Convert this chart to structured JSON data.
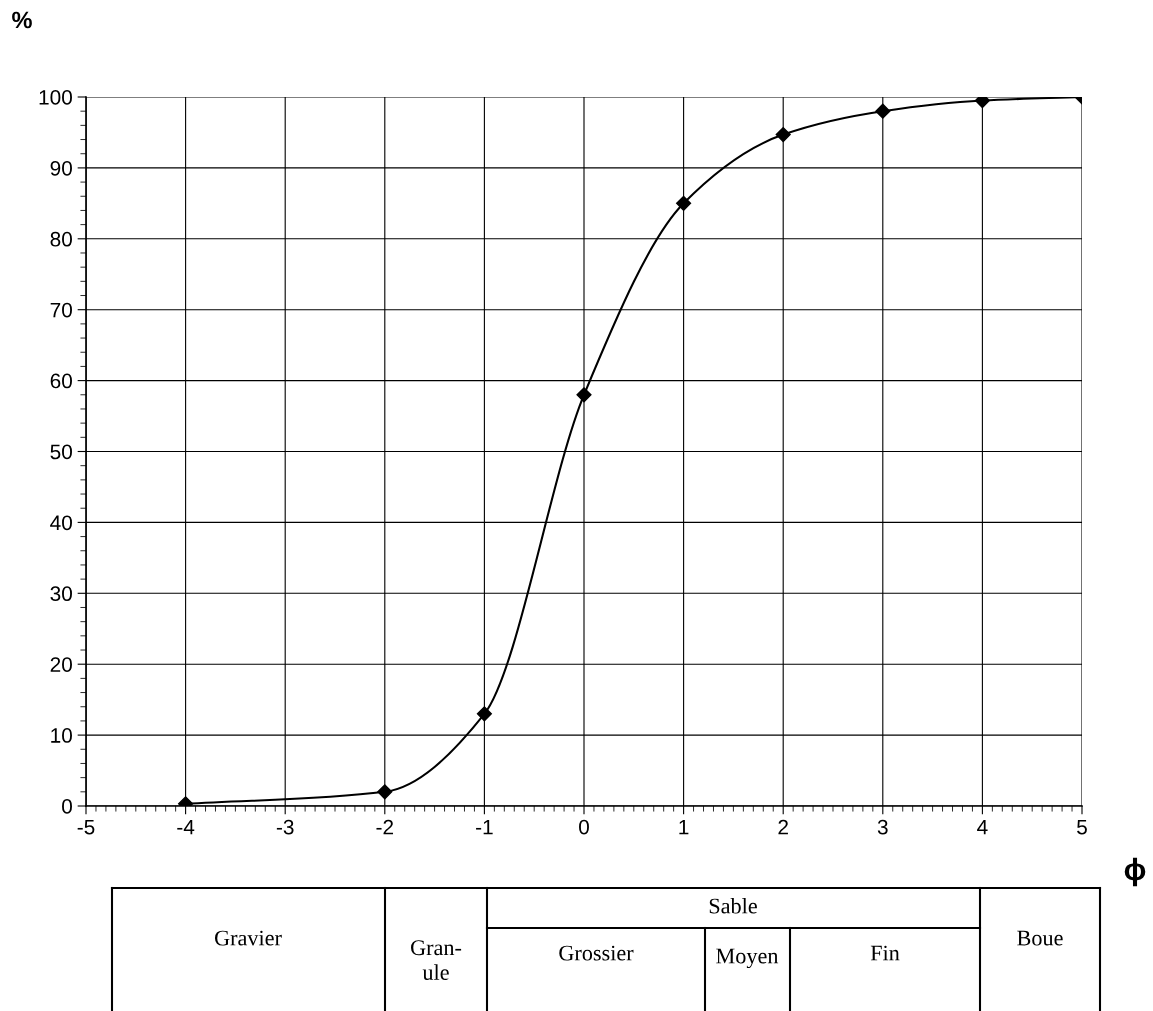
{
  "chart_data": {
    "type": "line",
    "xlabel": "ϕ",
    "ylabel": "%",
    "x": [
      -4,
      -2,
      -1,
      0,
      1,
      2,
      3,
      4,
      5
    ],
    "series": [
      {
        "color": "#000000",
        "values": [
          0.3,
          2,
          13,
          58,
          85,
          94.7,
          98,
          99.5,
          100
        ]
      }
    ],
    "xlim": [
      -5,
      5
    ],
    "xticks": [
      -5,
      -4,
      -3,
      -2,
      -1,
      0,
      1,
      2,
      3,
      4,
      5
    ],
    "ylim": [
      0,
      100
    ],
    "yticks": [
      0,
      10,
      20,
      30,
      40,
      50,
      60,
      70,
      80,
      90,
      100
    ],
    "grid": true,
    "marker": "diamond",
    "line_style": "solid",
    "annotations": [
      "Gravier",
      "Gran-\nule",
      "Sable",
      "Grossier",
      "Moyen",
      "Fin",
      "Boue"
    ]
  }
}
